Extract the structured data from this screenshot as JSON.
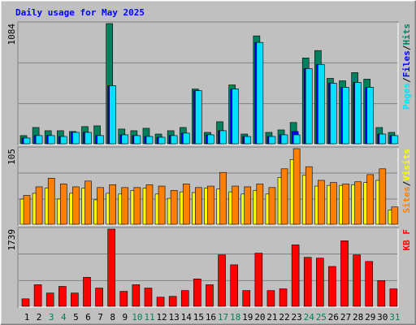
{
  "chart_data": [
    {
      "type": "bar",
      "title": "Daily usage for May 2025",
      "separator": "/",
      "ylim": [
        0,
        1084
      ],
      "yticks": [
        1084
      ],
      "series": [
        {
          "name": "Hits",
          "color": "#00805c",
          "values": [
            74,
            147,
            118,
            118,
            111,
            155,
            162,
            1084,
            133,
            118,
            140,
            88,
            118,
            147,
            494,
            103,
            199,
            531,
            88,
            973,
            103,
            125,
            192,
            774,
            841,
            590,
            568,
            642,
            583,
            147,
            103
          ]
        },
        {
          "name": "Files",
          "color": "#0000ff",
          "values": [
            52,
            74,
            74,
            66,
            103,
            103,
            74,
            524,
            81,
            74,
            66,
            59,
            74,
            96,
            479,
            81,
            118,
            494,
            66,
            914,
            66,
            81,
            111,
            678,
            715,
            546,
            509,
            553,
            509,
            88,
            74
          ]
        },
        {
          "name": "Pages",
          "color": "#00e0ff",
          "values": [
            52,
            74,
            74,
            66,
            103,
            103,
            74,
            524,
            81,
            74,
            66,
            59,
            74,
            96,
            479,
            81,
            118,
            494,
            66,
            914,
            66,
            81,
            81,
            678,
            715,
            546,
            509,
            553,
            509,
            88,
            74
          ]
        }
      ]
    },
    {
      "type": "bar",
      "separator": "/",
      "ylim": [
        0,
        105
      ],
      "yticks": [
        105
      ],
      "series": [
        {
          "name": "Visits",
          "color": "#ffff00",
          "values": [
            35,
            43,
            50,
            35,
            43,
            50,
            34,
            43,
            42,
            47,
            50,
            42,
            36,
            45,
            44,
            50,
            49,
            45,
            42,
            47,
            42,
            65,
            90,
            68,
            53,
            54,
            54,
            55,
            58,
            61,
            20
          ]
        },
        {
          "name": "Sites",
          "color": "#ff8000",
          "values": [
            40,
            52,
            64,
            56,
            52,
            60,
            51,
            55,
            51,
            51,
            55,
            53,
            47,
            56,
            51,
            53,
            72,
            53,
            52,
            56,
            51,
            77,
            105,
            80,
            61,
            58,
            56,
            59,
            69,
            77,
            24
          ]
        }
      ]
    },
    {
      "type": "bar",
      "ylim": [
        0,
        1739
      ],
      "yticks": [
        1739
      ],
      "categories": [
        "1",
        "2",
        "3",
        "4",
        "5",
        "6",
        "7",
        "8",
        "9",
        "10",
        "11",
        "12",
        "13",
        "14",
        "15",
        "16",
        "17",
        "18",
        "19",
        "20",
        "21",
        "22",
        "23",
        "24",
        "25",
        "26",
        "27",
        "28",
        "29",
        "30",
        "31"
      ],
      "category_colors": [
        "#000000",
        "#000000",
        "#00805c",
        "#00805c",
        "#000000",
        "#000000",
        "#000000",
        "#000000",
        "#000000",
        "#00805c",
        "#00805c",
        "#000000",
        "#000000",
        "#000000",
        "#000000",
        "#000000",
        "#00805c",
        "#00805c",
        "#000000",
        "#000000",
        "#000000",
        "#000000",
        "#000000",
        "#00805c",
        "#00805c",
        "#000000",
        "#000000",
        "#000000",
        "#000000",
        "#000000",
        "#00805c"
      ],
      "series": [
        {
          "name": "KB F",
          "color": "#ff0000",
          "values": [
            168,
            486,
            299,
            449,
            299,
            654,
            411,
            1739,
            337,
            486,
            411,
            206,
            224,
            355,
            617,
            486,
            1159,
            935,
            355,
            1197,
            355,
            393,
            1384,
            1103,
            1085,
            898,
            1477,
            1159,
            1010,
            580,
            393
          ]
        }
      ]
    }
  ]
}
